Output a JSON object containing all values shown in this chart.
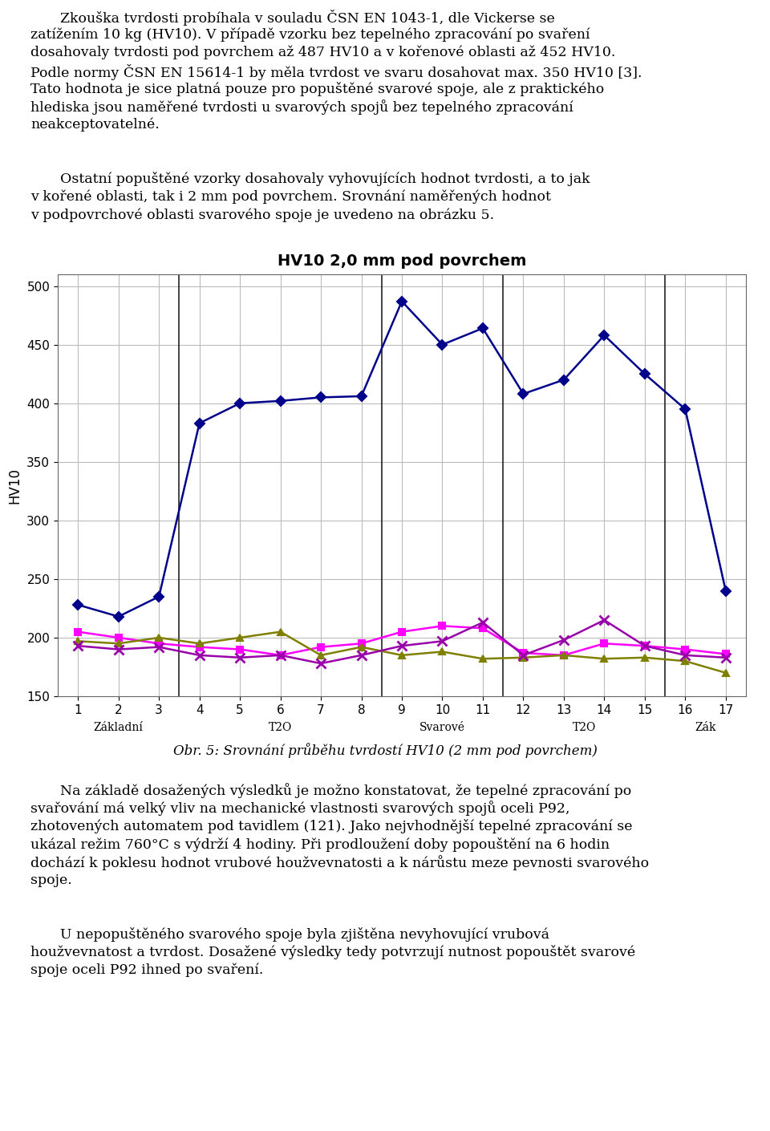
{
  "title": "HV10 2,0 mm pod povrchem",
  "ylabel": "HV10",
  "xlim": [
    0.5,
    17.5
  ],
  "ylim": [
    150,
    510
  ],
  "yticks": [
    150,
    200,
    250,
    300,
    350,
    400,
    450,
    500
  ],
  "xticks": [
    1,
    2,
    3,
    4,
    5,
    6,
    7,
    8,
    9,
    10,
    11,
    12,
    13,
    14,
    15,
    16,
    17
  ],
  "background_color": "#ffffff",
  "plot_bg_color": "#ffffff",
  "grid_color": "#bbbbbb",
  "series": [
    {
      "name": "series1_blue",
      "x": [
        1,
        2,
        3,
        4,
        5,
        6,
        7,
        8,
        9,
        10,
        11,
        12,
        13,
        14,
        15,
        16,
        17
      ],
      "y": [
        228,
        218,
        235,
        383,
        400,
        402,
        405,
        406,
        487,
        450,
        464,
        408,
        420,
        458,
        425,
        395,
        240
      ],
      "color": "#00008B",
      "marker": "D",
      "marker_size": 6,
      "linewidth": 1.8
    },
    {
      "name": "series2_magenta",
      "x": [
        1,
        2,
        3,
        4,
        5,
        6,
        7,
        8,
        9,
        10,
        11,
        12,
        13,
        14,
        15,
        16,
        17
      ],
      "y": [
        205,
        200,
        195,
        192,
        190,
        185,
        192,
        195,
        205,
        210,
        208,
        187,
        185,
        195,
        193,
        190,
        186
      ],
      "color": "#FF00FF",
      "marker": "s",
      "marker_size": 6,
      "linewidth": 1.8
    },
    {
      "name": "series3_olive",
      "x": [
        1,
        2,
        3,
        4,
        5,
        6,
        7,
        8,
        9,
        10,
        11,
        12,
        13,
        14,
        15,
        16,
        17
      ],
      "y": [
        197,
        195,
        200,
        195,
        200,
        205,
        185,
        192,
        185,
        188,
        182,
        183,
        185,
        182,
        183,
        180,
        170
      ],
      "color": "#808000",
      "marker": "^",
      "marker_size": 6,
      "linewidth": 1.8
    },
    {
      "name": "series4_purple",
      "x": [
        1,
        2,
        3,
        4,
        5,
        6,
        7,
        8,
        9,
        10,
        11,
        12,
        13,
        14,
        15,
        16,
        17
      ],
      "y": [
        193,
        190,
        192,
        185,
        183,
        185,
        178,
        185,
        193,
        197,
        213,
        185,
        198,
        215,
        193,
        185,
        183
      ],
      "color": "#9900AA",
      "marker": "x",
      "marker_size": 8,
      "linewidth": 1.8
    }
  ],
  "section_dividers": [
    3.5,
    8.5,
    11.5,
    15.5
  ],
  "section_labels": [
    {
      "x_start": 0.5,
      "x_end": 3.5,
      "label": "Základní"
    },
    {
      "x_start": 3.5,
      "x_end": 8.5,
      "label": "T2O"
    },
    {
      "x_start": 8.5,
      "x_end": 11.5,
      "label": "Svarové"
    },
    {
      "x_start": 11.5,
      "x_end": 15.5,
      "label": "T2O"
    },
    {
      "x_start": 15.5,
      "x_end": 17.5,
      "label": "Zák"
    }
  ],
  "top_para1": "Zkouška tvrdosti probíhala v souladu ČSN EN 1043-1, dle Vickerse se zatížením 10 kg (HV10). V případě vzorku bez tepelného zpracování po svaření dosahovaly tvrdosti pod povrchem až 487 HV10 a v kořenové oblasti až 452 HV10. Podle normy ČSN EN 15614-1 by měla tvrdost ve svaru dosahovat max. 350 HV10 [3]. Tato hodnota je sice platná pouze pro popuštěné svarové spoje, ale z praktického hlediska jsou naměřené tvrdosti u svarových spojů bez tepelného zpracování neakceptovatelné.",
  "top_para2": "Ostatní popuštěné vzorky dosahovaly vyhovujících hodnot tvrdosti, a to jak v kořené oblasti, tak i 2 mm pod povrchem. Srovnání naměřených hodnot v podpovrchové oblasti svarového spoje je uvedeno na obrázku 5.",
  "caption": "Obr. 5: Srovnání průběhu tvrdostí HV10 (2 mm pod povrchem)",
  "bot_para1": "Na základě dosažených výsledků je možno konstatovat, že tepelné zpracování po svařování má velký vliv na mechanické vlastnosti svarových spojů oceli P92, zhotovených automatem pod tavidlem (121). Jako nejvhodnější tepelné zpracování se ukázal režim 760°C s výdrží 4 hodiny. Při prodloužení doby popouštění na 6 hodin dochází k poklesu hodnot vrubové houžvevnatosti a k nárůstu meze pevnosti svarového spoje.",
  "bot_para2": "U nepopuštěného svarového spoje byla zjištěna nevyhovující vrubová houžvevnatost a tvrdost. Dosažené výsledky tedy potvrzují nutnost popouštět svarové spoje oceli P92 ihned po svaření.",
  "top_para1_lines": [
    "Zkouška tvrdosti probíhala v souladu ČSN EN 1043-1, dle Vickerse se",
    "zatížením 10 kg (HV10). V případě vzorku bez tepelného zpracování po svaření",
    "dosahovaly tvrdosti pod povrchem až 487 HV10 a v kořenové oblasti až 452 HV10.",
    "Podle normy ČSN EN 15614-1 by měla tvrdost ve svaru dosahovat max. 350 HV10 [3].",
    "Tato hodnota je sice platná pouze pro popuštěné svarové spoje, ale z praktického",
    "hlediska jsou naměřené tvrdosti u svarových spojů bez tepelného zpracování",
    "neakceptovatelné."
  ],
  "top_para2_lines": [
    "Ostatní popuštěné vzorky dosahovaly vyhovujících hodnot tvrdosti, a to jak",
    "v kořené oblasti, tak i 2 mm pod povrchem. Srovnání naměřených hodnot",
    "v podpovrchové oblasti svarového spoje je uvedeno na obrázku 5."
  ],
  "bot_para1_lines": [
    "Na základě dosažených výsledků je možno konstatovat, že tepelné zpracování po",
    "svařování má velký vliv na mechanické vlastnosti svarových spojů oceli P92,",
    "zhotovených automatem pod tavidlem (121). Jako nejvhodnější tepelné zpracování se",
    "ukázal režim 760°C s výdrží 4 hodiny. Při prodloužení doby popouštění na 6 hodin",
    "dochází k poklesu hodnot vrubové houžvevnatosti a k nárůstu meze pevnosti svarového",
    "spoje."
  ],
  "bot_para2_lines": [
    "U nepopuštěného svarového spoje byla zjištěna nevyhovující vrubová",
    "houžvevnatost a tvrdost. Dosažené výsledky tedy potvrzují nutnost popouštět svarové",
    "spoje oceli P92 ihned po svaření."
  ]
}
